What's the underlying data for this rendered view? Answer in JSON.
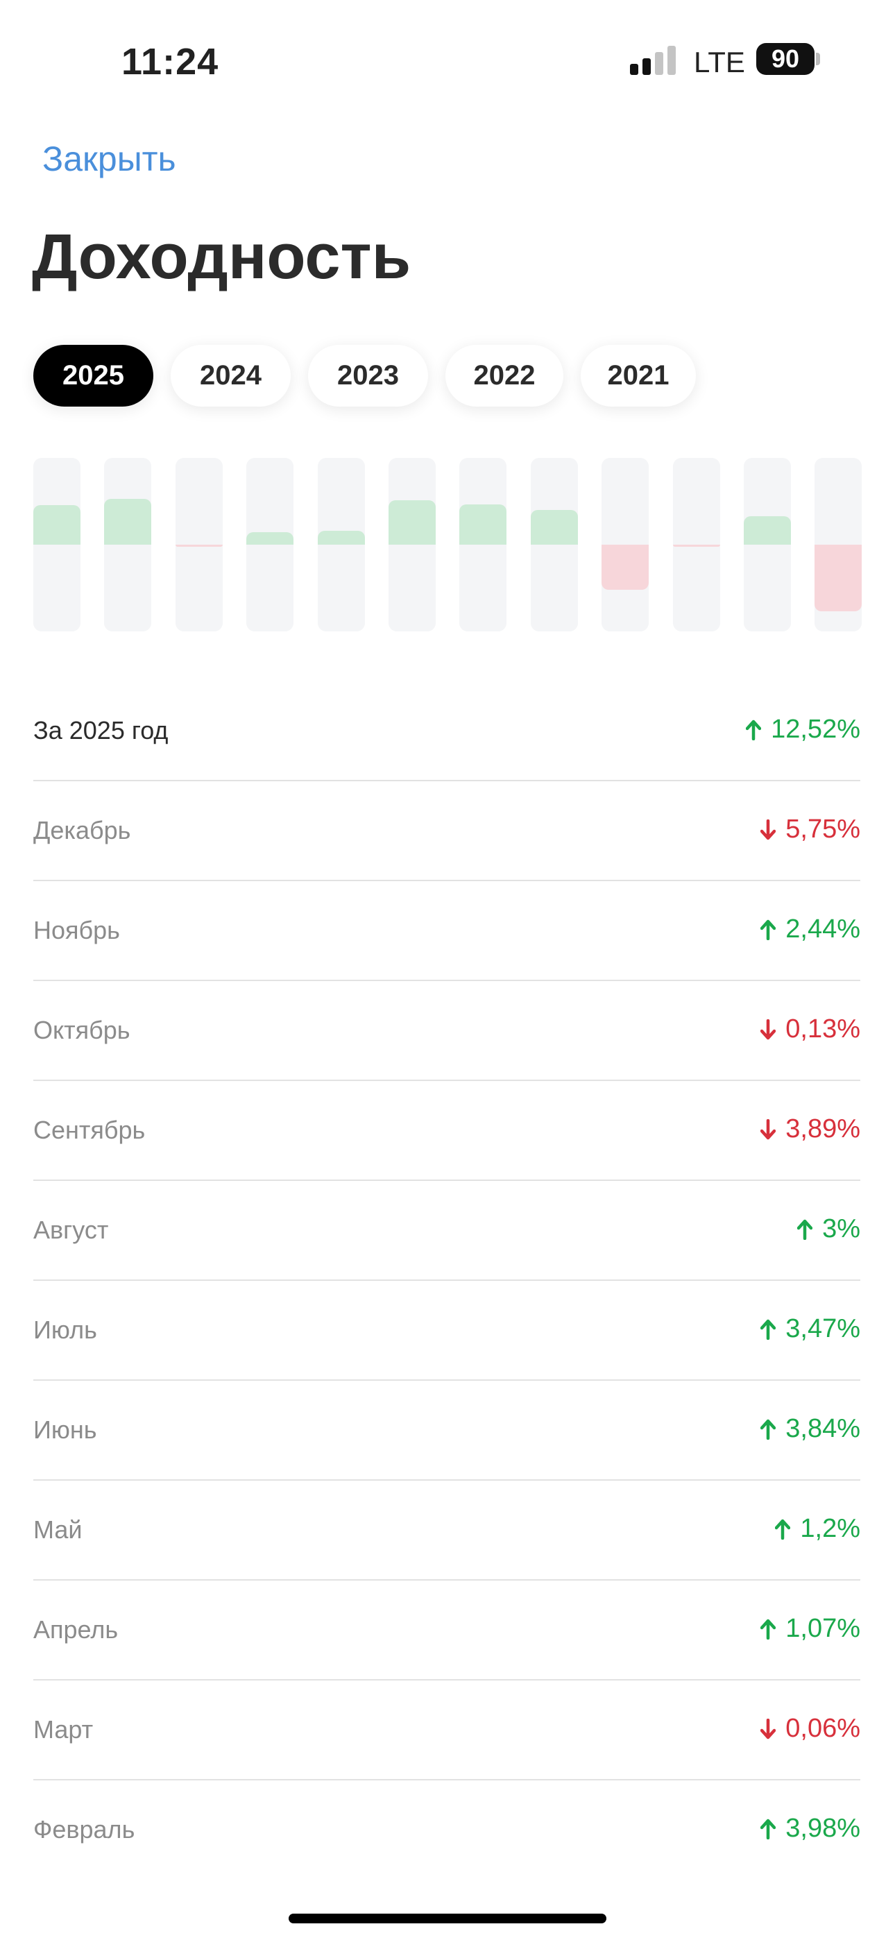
{
  "status_bar": {
    "time": "11:24",
    "network": "LTE",
    "battery": "90"
  },
  "header": {
    "close": "Закрыть",
    "title": "Доходность"
  },
  "years": {
    "items": [
      "2025",
      "2024",
      "2023",
      "2022",
      "2021"
    ],
    "selected": 0
  },
  "chart": {
    "type": "bar",
    "ylim": [
      -7.5,
      7.5
    ],
    "positive_color": "#cdebd6",
    "negative_color": "#f7d6da",
    "values": [
      3.4,
      3.98,
      -0.06,
      1.07,
      1.2,
      3.84,
      3.47,
      3,
      -3.89,
      -0.13,
      2.44,
      -5.75
    ]
  },
  "rows": [
    {
      "name": "За 2025 год",
      "label": "12,52%",
      "direction": "up"
    },
    {
      "name": "Декабрь",
      "label": "5,75%",
      "direction": "down"
    },
    {
      "name": "Ноябрь",
      "label": "2,44%",
      "direction": "up"
    },
    {
      "name": "Октябрь",
      "label": "0,13%",
      "direction": "down"
    },
    {
      "name": "Сентябрь",
      "label": "3,89%",
      "direction": "down"
    },
    {
      "name": "Август",
      "label": "3%",
      "direction": "up"
    },
    {
      "name": "Июль",
      "label": "3,47%",
      "direction": "up"
    },
    {
      "name": "Июнь",
      "label": "3,84%",
      "direction": "up"
    },
    {
      "name": "Май",
      "label": "1,2%",
      "direction": "up"
    },
    {
      "name": "Апрель",
      "label": "1,07%",
      "direction": "up"
    },
    {
      "name": "Март",
      "label": "0,06%",
      "direction": "down"
    },
    {
      "name": "Февраль",
      "label": "3,98%",
      "direction": "up"
    }
  ]
}
